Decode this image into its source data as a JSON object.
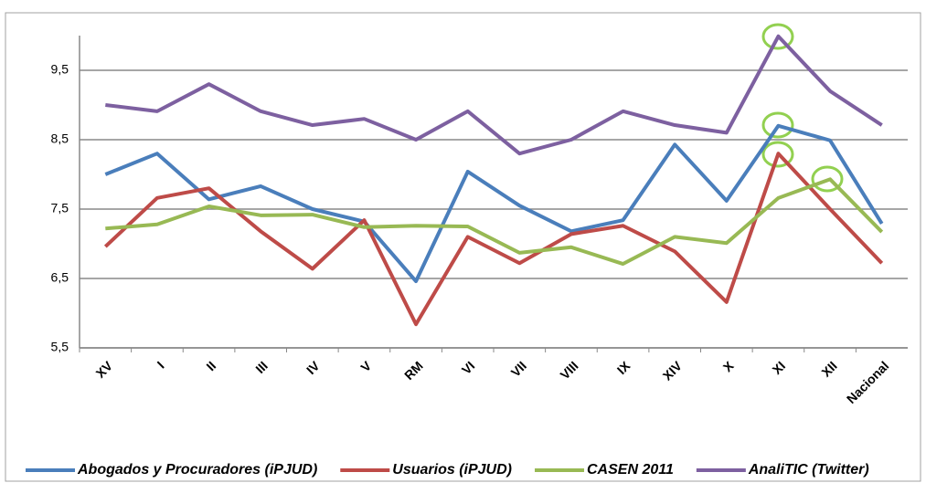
{
  "chart_data": {
    "type": "line",
    "categories": [
      "XV",
      "I",
      "II",
      "III",
      "IV",
      "V",
      "RM",
      "VI",
      "VII",
      "VIII",
      "IX",
      "XIV",
      "X",
      "XI",
      "XII",
      "Nacional"
    ],
    "series": [
      {
        "name": "Abogados y Procuradores (iPJUD)",
        "color": "#4a7ebb",
        "values": [
          8.0,
          8.3,
          7.64,
          7.83,
          7.5,
          7.32,
          6.46,
          8.04,
          7.55,
          7.18,
          7.34,
          8.43,
          7.62,
          8.7,
          8.49,
          7.29
        ]
      },
      {
        "name": "Usuarios (iPJUD)",
        "color": "#be4b48",
        "values": [
          6.96,
          7.66,
          7.8,
          7.18,
          6.64,
          7.34,
          5.84,
          7.1,
          6.72,
          7.14,
          7.26,
          6.89,
          6.16,
          8.3,
          7.5,
          6.72
        ]
      },
      {
        "name": "CASEN 2011",
        "color": "#98b954",
        "values": [
          7.22,
          7.28,
          7.54,
          7.41,
          7.42,
          7.24,
          7.26,
          7.25,
          6.87,
          6.95,
          6.71,
          7.1,
          7.01,
          7.66,
          7.93,
          7.17
        ]
      },
      {
        "name": "AnaliTIC (Twitter)",
        "color": "#7d60a0",
        "values": [
          9.0,
          8.91,
          9.3,
          8.91,
          8.71,
          8.8,
          8.5,
          8.91,
          8.3,
          8.5,
          8.91,
          8.71,
          8.6,
          9.99,
          9.2,
          8.71
        ]
      }
    ],
    "ylim": [
      5.5,
      10
    ],
    "yticks": [
      {
        "value": 5.5,
        "label": "5,5"
      },
      {
        "value": 6.5,
        "label": "6,5"
      },
      {
        "value": 7.5,
        "label": "7,5"
      },
      {
        "value": 8.5,
        "label": "8,5"
      },
      {
        "value": 9.5,
        "label": "9,5"
      }
    ],
    "grid": true,
    "legend": "bottom"
  }
}
